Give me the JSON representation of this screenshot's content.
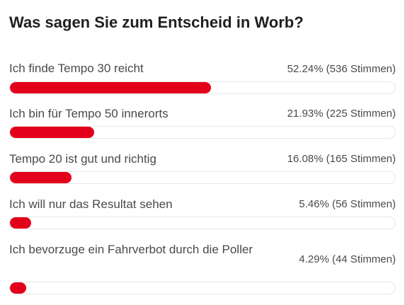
{
  "poll": {
    "title": "Was sagen Sie zum Entscheid in Worb?",
    "accent_color": "#e3001b",
    "options": [
      {
        "label": "Ich finde Tempo 30 reicht",
        "result": "52.24% (536 Stimmen)",
        "percent": 52.24,
        "votes": 536
      },
      {
        "label": "Ich bin für Tempo 50 innerorts",
        "result": "21.93% (225 Stimmen)",
        "percent": 21.93,
        "votes": 225
      },
      {
        "label": "Tempo 20 ist gut und richtig",
        "result": "16.08% (165 Stimmen)",
        "percent": 16.08,
        "votes": 165
      },
      {
        "label": "Ich will nur das Resultat sehen",
        "result": "5.46% (56 Stimmen)",
        "percent": 5.46,
        "votes": 56
      },
      {
        "label": "Ich bevorzuge ein Fahrverbot durch die Poller",
        "result": "4.29% (44 Stimmen)",
        "percent": 4.29,
        "votes": 44
      }
    ]
  }
}
